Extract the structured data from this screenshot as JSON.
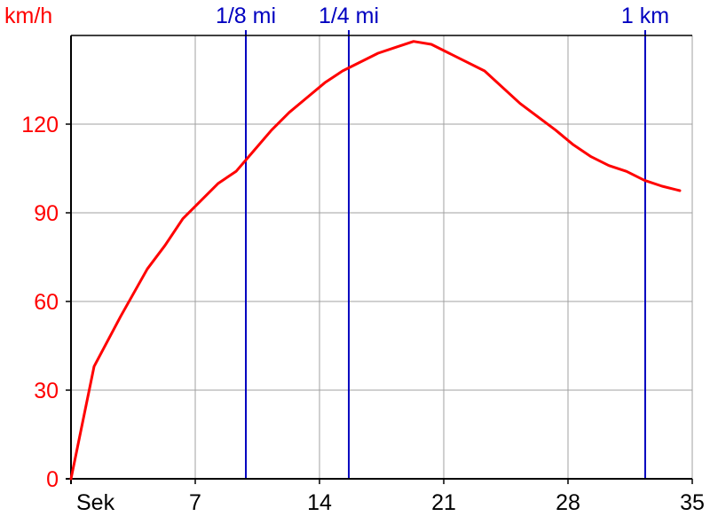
{
  "chart_data": {
    "type": "line",
    "title": "",
    "xlabel": "Sek",
    "ylabel": "km/h",
    "xlim": [
      0,
      35
    ],
    "ylim": [
      0,
      150
    ],
    "x_ticks": [
      "7",
      "14",
      "21",
      "28",
      "35"
    ],
    "y_ticks": [
      "0",
      "30",
      "60",
      "90",
      "120"
    ],
    "grid": true,
    "series": [
      {
        "color": "#ff0000",
        "x": [
          0,
          1.3,
          2.8,
          4.3,
          5.3,
          6.3,
          7.3,
          8.3,
          9.3,
          10.3,
          11.3,
          12.3,
          13.3,
          14.3,
          15.3,
          16.3,
          17.3,
          18.3,
          19.3,
          20.3,
          21.3,
          23.3,
          25.3,
          27.3,
          28.3,
          29.3,
          30.3,
          31.3,
          32.3,
          33.3,
          34.3
        ],
        "y": [
          0,
          38,
          55,
          71,
          79,
          88,
          94,
          100,
          104,
          111,
          118,
          124,
          129,
          134,
          138,
          141,
          144,
          146,
          148,
          147,
          144,
          138,
          127,
          118,
          113,
          109,
          106,
          104,
          101,
          99,
          97.5
        ]
      }
    ],
    "markers": [
      {
        "label": "1/8 mi",
        "x": 9.85,
        "color": "#0000c0"
      },
      {
        "label": "1/4 mi",
        "x": 15.65,
        "color": "#0000c0"
      },
      {
        "label": "1 km",
        "x": 32.35,
        "color": "#0000c0"
      }
    ]
  }
}
